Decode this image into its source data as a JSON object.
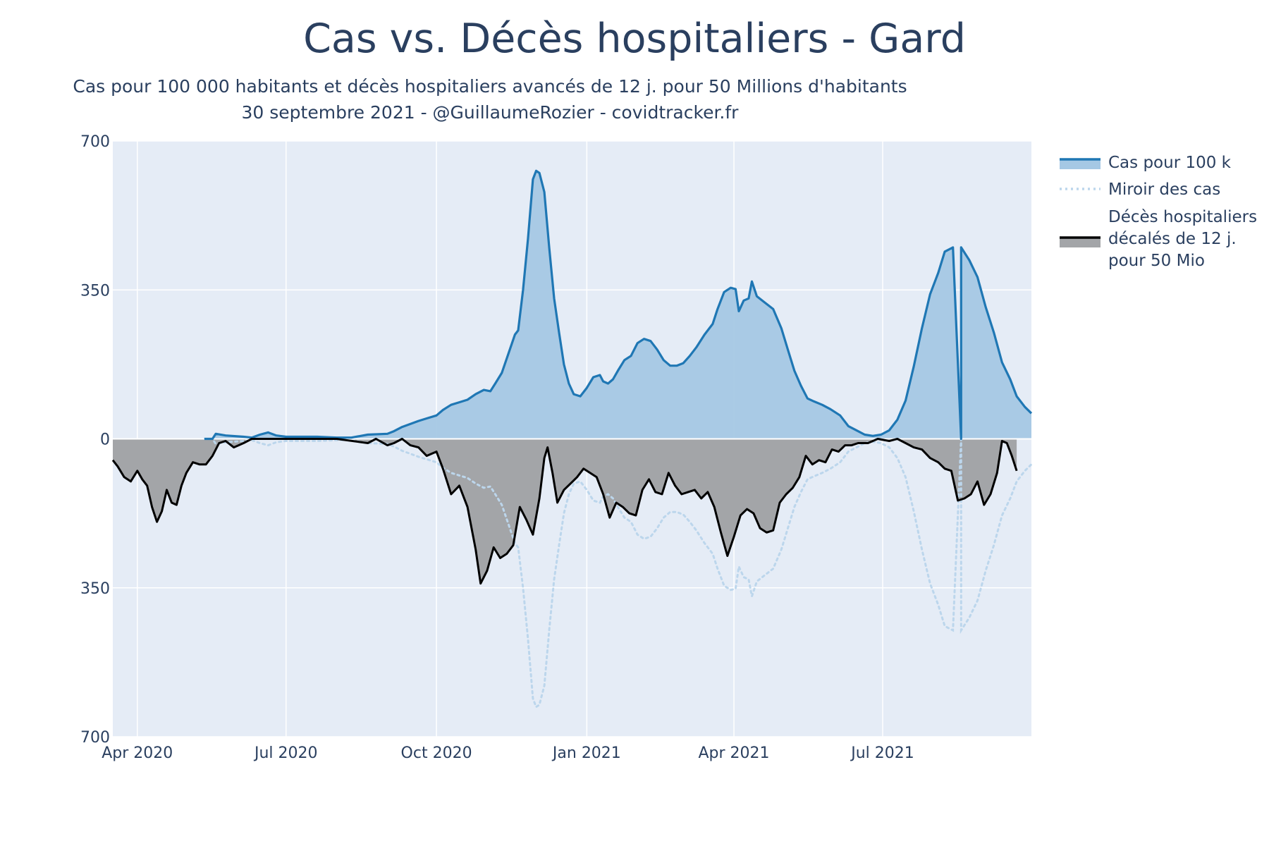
{
  "chart_data": {
    "type": "area",
    "title": "Cas vs. Décès hospitaliers - Gard",
    "subtitle": [
      "Cas pour 100 000 habitants et décès hospitaliers avancés de 12 j. pour 50 Millions d'habitants",
      "30 septembre 2021 - @GuillaumeRozier - covidtracker.fr"
    ],
    "xlabel": "",
    "ylabel": "",
    "xlim": [
      "2020-03-17",
      "2021-09-30"
    ],
    "ylim": [
      -700,
      700
    ],
    "y_tick_values": [
      700,
      350,
      0,
      -350,
      -700
    ],
    "y_tick_labels": [
      "700",
      "350",
      "0",
      "350",
      "700"
    ],
    "x_ticks": [
      {
        "date": "2020-04-01",
        "label": "Apr 2020"
      },
      {
        "date": "2020-07-01",
        "label": "Jul 2020"
      },
      {
        "date": "2020-10-01",
        "label": "Oct 2020"
      },
      {
        "date": "2021-01-01",
        "label": "Jan 2021"
      },
      {
        "date": "2021-04-01",
        "label": "Apr 2021"
      },
      {
        "date": "2021-07-01",
        "label": "Jul 2021"
      }
    ],
    "grid": true,
    "legend_position": "right",
    "colors": {
      "cases_line": "#1f77b4",
      "cases_fill": "#a5c8e4",
      "mirror": "#bcd6ec",
      "deaths_line": "#000000",
      "deaths_fill": "#a3a5a8",
      "plot_bg": "#e5ecf6",
      "grid": "#ffffff"
    },
    "series": [
      {
        "name": "Cas pour 100 k",
        "style": "line-with-fill",
        "points": [
          [
            "2020-05-12",
            0
          ],
          [
            "2020-05-17",
            0
          ],
          [
            "2020-05-19",
            12
          ],
          [
            "2020-05-25",
            8
          ],
          [
            "2020-06-05",
            5
          ],
          [
            "2020-06-10",
            3
          ],
          [
            "2020-06-15",
            10
          ],
          [
            "2020-06-20",
            15
          ],
          [
            "2020-06-25",
            8
          ],
          [
            "2020-07-01",
            5
          ],
          [
            "2020-07-20",
            5
          ],
          [
            "2020-08-01",
            3
          ],
          [
            "2020-08-10",
            3
          ],
          [
            "2020-08-20",
            10
          ],
          [
            "2020-09-01",
            12
          ],
          [
            "2020-09-05",
            18
          ],
          [
            "2020-09-10",
            28
          ],
          [
            "2020-09-15",
            35
          ],
          [
            "2020-09-20",
            42
          ],
          [
            "2020-09-25",
            48
          ],
          [
            "2020-10-01",
            55
          ],
          [
            "2020-10-05",
            68
          ],
          [
            "2020-10-10",
            80
          ],
          [
            "2020-10-15",
            86
          ],
          [
            "2020-10-20",
            92
          ],
          [
            "2020-10-25",
            105
          ],
          [
            "2020-10-30",
            115
          ],
          [
            "2020-11-03",
            112
          ],
          [
            "2020-11-06",
            130
          ],
          [
            "2020-11-10",
            155
          ],
          [
            "2020-11-14",
            200
          ],
          [
            "2020-11-18",
            245
          ],
          [
            "2020-11-20",
            255
          ],
          [
            "2020-11-23",
            350
          ],
          [
            "2020-11-26",
            470
          ],
          [
            "2020-11-29",
            610
          ],
          [
            "2020-12-01",
            630
          ],
          [
            "2020-12-03",
            625
          ],
          [
            "2020-12-06",
            580
          ],
          [
            "2020-12-09",
            450
          ],
          [
            "2020-12-12",
            330
          ],
          [
            "2020-12-15",
            250
          ],
          [
            "2020-12-18",
            175
          ],
          [
            "2020-12-21",
            130
          ],
          [
            "2020-12-24",
            105
          ],
          [
            "2020-12-28",
            100
          ],
          [
            "2021-01-01",
            120
          ],
          [
            "2021-01-05",
            145
          ],
          [
            "2021-01-09",
            150
          ],
          [
            "2021-01-11",
            135
          ],
          [
            "2021-01-14",
            130
          ],
          [
            "2021-01-17",
            140
          ],
          [
            "2021-01-20",
            160
          ],
          [
            "2021-01-24",
            185
          ],
          [
            "2021-01-28",
            195
          ],
          [
            "2021-02-01",
            225
          ],
          [
            "2021-02-05",
            235
          ],
          [
            "2021-02-09",
            230
          ],
          [
            "2021-02-13",
            210
          ],
          [
            "2021-02-17",
            185
          ],
          [
            "2021-02-21",
            172
          ],
          [
            "2021-02-25",
            172
          ],
          [
            "2021-03-01",
            178
          ],
          [
            "2021-03-05",
            195
          ],
          [
            "2021-03-09",
            215
          ],
          [
            "2021-03-14",
            245
          ],
          [
            "2021-03-19",
            270
          ],
          [
            "2021-03-22",
            305
          ],
          [
            "2021-03-26",
            345
          ],
          [
            "2021-03-30",
            355
          ],
          [
            "2021-04-02",
            352
          ],
          [
            "2021-04-04",
            300
          ],
          [
            "2021-04-07",
            325
          ],
          [
            "2021-04-10",
            330
          ],
          [
            "2021-04-12",
            370
          ],
          [
            "2021-04-15",
            335
          ],
          [
            "2021-04-20",
            320
          ],
          [
            "2021-04-25",
            305
          ],
          [
            "2021-04-30",
            260
          ],
          [
            "2021-05-04",
            210
          ],
          [
            "2021-05-08",
            160
          ],
          [
            "2021-05-12",
            125
          ],
          [
            "2021-05-16",
            95
          ],
          [
            "2021-05-20",
            88
          ],
          [
            "2021-05-25",
            80
          ],
          [
            "2021-05-30",
            70
          ],
          [
            "2021-06-05",
            55
          ],
          [
            "2021-06-10",
            30
          ],
          [
            "2021-06-15",
            20
          ],
          [
            "2021-06-20",
            10
          ],
          [
            "2021-06-25",
            7
          ],
          [
            "2021-06-30",
            10
          ],
          [
            "2021-07-05",
            20
          ],
          [
            "2021-07-10",
            45
          ],
          [
            "2021-07-15",
            90
          ],
          [
            "2021-07-20",
            170
          ],
          [
            "2021-07-25",
            260
          ],
          [
            "2021-07-30",
            340
          ],
          [
            "2021-08-04",
            390
          ],
          [
            "2021-08-08",
            440
          ],
          [
            "2021-08-13",
            450
          ],
          [
            "2021-08-18,",
            0
          ],
          [
            "2021-08-18",
            450
          ],
          [
            "2021-08-23",
            420
          ],
          [
            "2021-08-28",
            380
          ],
          [
            "2021-09-02",
            310
          ],
          [
            "2021-09-07",
            250
          ],
          [
            "2021-09-12",
            180
          ],
          [
            "2021-09-17",
            140
          ],
          [
            "2021-09-21",
            100
          ],
          [
            "2021-09-26",
            75
          ],
          [
            "2021-09-30",
            60
          ]
        ]
      },
      {
        "name": "Miroir des cas",
        "style": "dotted-line",
        "source": "negated copy of Cas pour 100 k"
      },
      {
        "name": "Décès hospitaliers décalés de 12 j. pour 50 Mio",
        "style": "line-with-fill",
        "points": [
          [
            "2020-03-17",
            -50
          ],
          [
            "2020-03-20",
            -65
          ],
          [
            "2020-03-24",
            -90
          ],
          [
            "2020-03-28",
            -100
          ],
          [
            "2020-04-01",
            -75
          ],
          [
            "2020-04-04",
            -95
          ],
          [
            "2020-04-07",
            -110
          ],
          [
            "2020-04-10",
            -160
          ],
          [
            "2020-04-13",
            -195
          ],
          [
            "2020-04-16",
            -170
          ],
          [
            "2020-04-19",
            -120
          ],
          [
            "2020-04-22",
            -150
          ],
          [
            "2020-04-25",
            -155
          ],
          [
            "2020-04-28",
            -110
          ],
          [
            "2020-05-01",
            -80
          ],
          [
            "2020-05-05",
            -55
          ],
          [
            "2020-05-09",
            -60
          ],
          [
            "2020-05-13",
            -60
          ],
          [
            "2020-05-17",
            -40
          ],
          [
            "2020-05-21",
            -10
          ],
          [
            "2020-05-25",
            -5
          ],
          [
            "2020-05-30",
            -20
          ],
          [
            "2020-06-05",
            -10
          ],
          [
            "2020-06-10",
            0
          ],
          [
            "2020-06-20",
            0
          ],
          [
            "2020-07-01",
            0
          ],
          [
            "2020-08-01",
            0
          ],
          [
            "2020-08-20",
            -10
          ],
          [
            "2020-08-25",
            0
          ],
          [
            "2020-09-01",
            -15
          ],
          [
            "2020-09-05",
            -10
          ],
          [
            "2020-09-10",
            0
          ],
          [
            "2020-09-15",
            -15
          ],
          [
            "2020-09-20",
            -20
          ],
          [
            "2020-09-25",
            -40
          ],
          [
            "2020-10-01",
            -30
          ],
          [
            "2020-10-05",
            -70
          ],
          [
            "2020-10-10",
            -130
          ],
          [
            "2020-10-15",
            -110
          ],
          [
            "2020-10-20",
            -160
          ],
          [
            "2020-10-25",
            -260
          ],
          [
            "2020-10-28",
            -340
          ],
          [
            "2020-11-01",
            -310
          ],
          [
            "2020-11-05",
            -255
          ],
          [
            "2020-11-09",
            -280
          ],
          [
            "2020-11-13",
            -270
          ],
          [
            "2020-11-17",
            -250
          ],
          [
            "2020-11-21",
            -160
          ],
          [
            "2020-11-25",
            -190
          ],
          [
            "2020-11-29",
            -225
          ],
          [
            "2020-12-03",
            -140
          ],
          [
            "2020-12-06",
            -45
          ],
          [
            "2020-12-08",
            -20
          ],
          [
            "2020-12-11",
            -80
          ],
          [
            "2020-12-14",
            -150
          ],
          [
            "2020-12-18",
            -120
          ],
          [
            "2020-12-22",
            -105
          ],
          [
            "2020-12-26",
            -90
          ],
          [
            "2020-12-30",
            -70
          ],
          [
            "2021-01-03",
            -80
          ],
          [
            "2021-01-07",
            -90
          ],
          [
            "2021-01-11",
            -130
          ],
          [
            "2021-01-15",
            -185
          ],
          [
            "2021-01-19",
            -150
          ],
          [
            "2021-01-23",
            -160
          ],
          [
            "2021-01-27",
            -175
          ],
          [
            "2021-01-31",
            -180
          ],
          [
            "2021-02-04",
            -120
          ],
          [
            "2021-02-08",
            -95
          ],
          [
            "2021-02-12",
            -125
          ],
          [
            "2021-02-16",
            -130
          ],
          [
            "2021-02-20",
            -80
          ],
          [
            "2021-02-24",
            -110
          ],
          [
            "2021-02-28",
            -130
          ],
          [
            "2021-03-04",
            -125
          ],
          [
            "2021-03-08",
            -120
          ],
          [
            "2021-03-12",
            -140
          ],
          [
            "2021-03-16",
            -125
          ],
          [
            "2021-03-20",
            -160
          ],
          [
            "2021-03-24",
            -220
          ],
          [
            "2021-03-28",
            -275
          ],
          [
            "2021-04-01",
            -230
          ],
          [
            "2021-04-05",
            -180
          ],
          [
            "2021-04-09",
            -165
          ],
          [
            "2021-04-13",
            -175
          ],
          [
            "2021-04-17",
            -210
          ],
          [
            "2021-04-21",
            -220
          ],
          [
            "2021-04-25",
            -215
          ],
          [
            "2021-04-29",
            -150
          ],
          [
            "2021-05-03",
            -130
          ],
          [
            "2021-05-07",
            -115
          ],
          [
            "2021-05-11",
            -90
          ],
          [
            "2021-05-15",
            -40
          ],
          [
            "2021-05-19",
            -60
          ],
          [
            "2021-05-23",
            -50
          ],
          [
            "2021-05-27",
            -55
          ],
          [
            "2021-05-31",
            -25
          ],
          [
            "2021-06-04",
            -30
          ],
          [
            "2021-06-08",
            -15
          ],
          [
            "2021-06-12",
            -15
          ],
          [
            "2021-06-16",
            -10
          ],
          [
            "2021-06-22",
            -10
          ],
          [
            "2021-06-28",
            0
          ],
          [
            "2021-07-05",
            -5
          ],
          [
            "2021-07-10",
            0
          ],
          [
            "2021-07-15",
            -10
          ],
          [
            "2021-07-20",
            -20
          ],
          [
            "2021-07-25",
            -25
          ],
          [
            "2021-07-30",
            -45
          ],
          [
            "2021-08-04",
            -55
          ],
          [
            "2021-08-08",
            -70
          ],
          [
            "2021-08-12",
            -75
          ],
          [
            "2021-08-16",
            -145
          ],
          [
            "2021-08-20",
            -140
          ],
          [
            "2021-08-24",
            -130
          ],
          [
            "2021-08-28",
            -100
          ],
          [
            "2021-09-01",
            -155
          ],
          [
            "2021-09-05",
            -130
          ],
          [
            "2021-09-09",
            -80
          ],
          [
            "2021-09-12",
            -5
          ],
          [
            "2021-09-15",
            -10
          ],
          [
            "2021-09-18",
            -40
          ],
          [
            "2021-09-21",
            -75
          ]
        ]
      }
    ]
  },
  "legend": [
    {
      "label_lines": [
        "Cas pour 100 k"
      ]
    },
    {
      "label_lines": [
        "Miroir des cas"
      ]
    },
    {
      "label_lines": [
        "Décès hospitaliers",
        "décalés de 12 j.",
        "pour 50 Mio"
      ]
    }
  ]
}
